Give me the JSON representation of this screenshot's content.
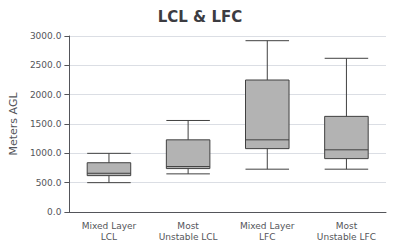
{
  "chart_data": {
    "type": "boxplot",
    "title": "LCL & LFC",
    "ylabel": "Meters AGL",
    "categories": [
      "Mixed Layer\nLCL",
      "Most\nUnstable LCL",
      "Mixed Layer\nLFC",
      "Most\nUnstable LFC"
    ],
    "values": [
      {
        "whislo": 500,
        "q1": 620,
        "med": 660,
        "q3": 840,
        "whishi": 1000
      },
      {
        "whislo": 650,
        "q1": 740,
        "med": 775,
        "q3": 1230,
        "whishi": 1560
      },
      {
        "whislo": 730,
        "q1": 1080,
        "med": 1230,
        "q3": 2250,
        "whishi": 2920
      },
      {
        "whislo": 730,
        "q1": 910,
        "med": 1060,
        "q3": 1630,
        "whishi": 2620
      }
    ],
    "color": "#b3b3b3",
    "ylim": [
      0,
      3000
    ],
    "yticks": [
      {
        "value": 0,
        "label": "0.0"
      },
      {
        "value": 500,
        "label": "500.0"
      },
      {
        "value": 1000,
        "label": "1000.0"
      },
      {
        "value": 1500,
        "label": "1500.0"
      },
      {
        "value": 2000,
        "label": "2000.0"
      },
      {
        "value": 2500,
        "label": "2500.0"
      },
      {
        "value": 3000,
        "label": "3000.0"
      }
    ],
    "grid": true
  }
}
